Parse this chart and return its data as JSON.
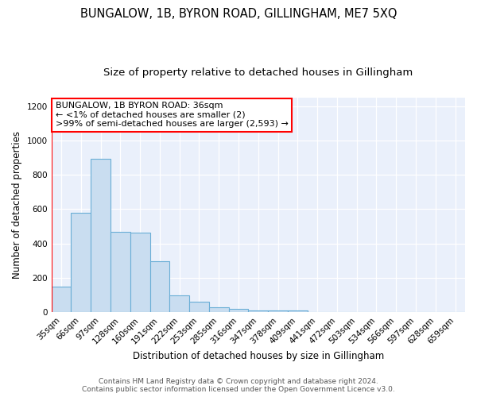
{
  "title": "BUNGALOW, 1B, BYRON ROAD, GILLINGHAM, ME7 5XQ",
  "subtitle": "Size of property relative to detached houses in Gillingham",
  "xlabel": "Distribution of detached houses by size in Gillingham",
  "ylabel": "Number of detached properties",
  "bar_labels": [
    "35sqm",
    "66sqm",
    "97sqm",
    "128sqm",
    "160sqm",
    "191sqm",
    "222sqm",
    "253sqm",
    "285sqm",
    "316sqm",
    "347sqm",
    "378sqm",
    "409sqm",
    "441sqm",
    "472sqm",
    "503sqm",
    "534sqm",
    "566sqm",
    "597sqm",
    "628sqm",
    "659sqm"
  ],
  "bar_heights": [
    150,
    580,
    895,
    470,
    465,
    295,
    100,
    60,
    28,
    18,
    12,
    10,
    11,
    0,
    0,
    0,
    0,
    0,
    0,
    0,
    0
  ],
  "bar_color": "#c9ddf0",
  "bar_edge_color": "#6aaed6",
  "background_color": "#eaf0fb",
  "ylim": [
    0,
    1250
  ],
  "yticks": [
    0,
    200,
    400,
    600,
    800,
    1000,
    1200
  ],
  "annotation_line1": "BUNGALOW, 1B BYRON ROAD: 36sqm",
  "annotation_line2": "← <1% of detached houses are smaller (2)",
  "annotation_line3": ">99% of semi-detached houses are larger (2,593) →",
  "footer_text": "Contains HM Land Registry data © Crown copyright and database right 2024.\nContains public sector information licensed under the Open Government Licence v3.0.",
  "title_fontsize": 10.5,
  "subtitle_fontsize": 9.5,
  "axis_label_fontsize": 8.5,
  "tick_fontsize": 7.5,
  "annotation_fontsize": 8
}
